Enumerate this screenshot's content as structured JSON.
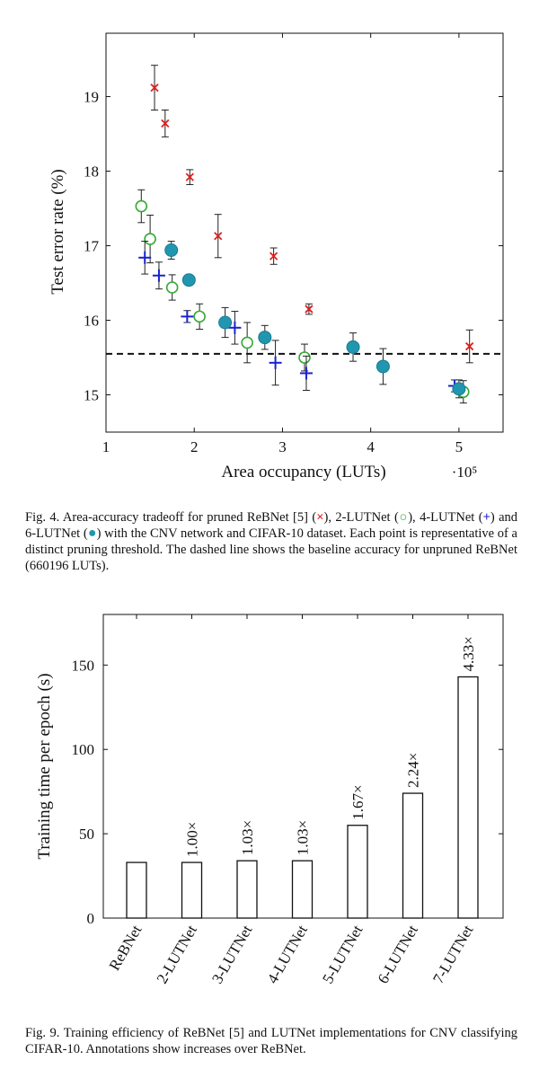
{
  "chart_data": [
    {
      "type": "scatter",
      "title": "",
      "xlabel": "Area occupancy (LUTs)",
      "ylabel": "Test error rate (%)",
      "x_multiplier_label": "·10⁵",
      "xlim": [
        1,
        5.5
      ],
      "ylim": [
        14.5,
        19.85
      ],
      "xticks": [
        "1",
        "2",
        "3",
        "4",
        "5"
      ],
      "yticks": [
        "15",
        "16",
        "17",
        "18",
        "19"
      ],
      "baseline": 15.55,
      "series": [
        {
          "name": "ReBNet",
          "marker": "x",
          "color": "#e02020",
          "points": [
            {
              "x": 1.55,
              "y": 19.12,
              "err": 0.3
            },
            {
              "x": 1.67,
              "y": 18.64,
              "err": 0.18
            },
            {
              "x": 1.95,
              "y": 17.92,
              "err": 0.1
            },
            {
              "x": 2.27,
              "y": 17.13,
              "err": 0.29
            },
            {
              "x": 2.9,
              "y": 16.86,
              "err": 0.11
            },
            {
              "x": 3.3,
              "y": 16.15,
              "err": 0.07
            },
            {
              "x": 5.12,
              "y": 15.65,
              "err": 0.22
            }
          ]
        },
        {
          "name": "2-LUTNet",
          "marker": "o",
          "color": "#33aa33",
          "points": [
            {
              "x": 1.4,
              "y": 17.53,
              "err": 0.22
            },
            {
              "x": 1.5,
              "y": 17.09,
              "err": 0.32
            },
            {
              "x": 1.75,
              "y": 16.44,
              "err": 0.17
            },
            {
              "x": 2.06,
              "y": 16.05,
              "err": 0.17
            },
            {
              "x": 2.6,
              "y": 15.7,
              "err": 0.27
            },
            {
              "x": 3.25,
              "y": 15.5,
              "err": 0.18
            },
            {
              "x": 5.05,
              "y": 15.04,
              "err": 0.15
            }
          ]
        },
        {
          "name": "4-LUTNet",
          "marker": "+",
          "color": "#1a22cc",
          "points": [
            {
              "x": 1.44,
              "y": 16.84,
              "err": 0.22
            },
            {
              "x": 1.6,
              "y": 16.6,
              "err": 0.18
            },
            {
              "x": 1.92,
              "y": 16.05,
              "err": 0.08
            },
            {
              "x": 2.46,
              "y": 15.9,
              "err": 0.22
            },
            {
              "x": 2.92,
              "y": 15.43,
              "err": 0.3
            },
            {
              "x": 3.27,
              "y": 15.29,
              "err": 0.23
            },
            {
              "x": 4.95,
              "y": 15.12,
              "err": 0.08
            }
          ]
        },
        {
          "name": "6-LUTNet",
          "marker": "filled-circle",
          "color": "#2196b0",
          "points": [
            {
              "x": 1.74,
              "y": 16.94,
              "err": 0.12
            },
            {
              "x": 1.94,
              "y": 16.54,
              "err": 0.07
            },
            {
              "x": 2.35,
              "y": 15.97,
              "err": 0.2
            },
            {
              "x": 2.8,
              "y": 15.77,
              "err": 0.16
            },
            {
              "x": 3.8,
              "y": 15.64,
              "err": 0.19
            },
            {
              "x": 4.14,
              "y": 15.38,
              "err": 0.24
            },
            {
              "x": 5.0,
              "y": 15.08,
              "err": 0.12
            }
          ]
        }
      ]
    },
    {
      "type": "bar",
      "title": "",
      "xlabel": "",
      "ylabel": "Training time per epoch (s)",
      "ylim": [
        0,
        180
      ],
      "yticks": [
        "0",
        "50",
        "100",
        "150"
      ],
      "categories": [
        "ReBNet",
        "2-LUTNet",
        "3-LUTNet",
        "4-LUTNet",
        "5-LUTNet",
        "6-LUTNet",
        "7-LUTNet"
      ],
      "values": [
        33,
        33,
        34,
        34,
        55,
        74,
        143
      ],
      "annotations": [
        "",
        "1.00×",
        "1.03×",
        "1.03×",
        "1.67×",
        "2.24×",
        "4.33×"
      ]
    }
  ],
  "caption1": {
    "text1": "Fig. 4. Area-accuracy tradeoff for pruned ReBNet [5] (",
    "sym1": "×",
    "text2": "), 2-LUTNet (",
    "sym2": "○",
    "text3": "), 4-LUTNet (",
    "sym3": "+",
    "text4": ") and 6-LUTNet (",
    "sym4": "●",
    "text5": ") with the CNV network and CIFAR-10 dataset. Each point is representative of a distinct pruning threshold. The dashed line shows the baseline accuracy for unpruned ReBNet (660196 LUTs)."
  },
  "caption2": {
    "text": "Fig. 9. Training efficiency of ReBNet [5] and LUTNet implementations for CNV classifying CIFAR-10. Annotations show increases over ReBNet."
  }
}
